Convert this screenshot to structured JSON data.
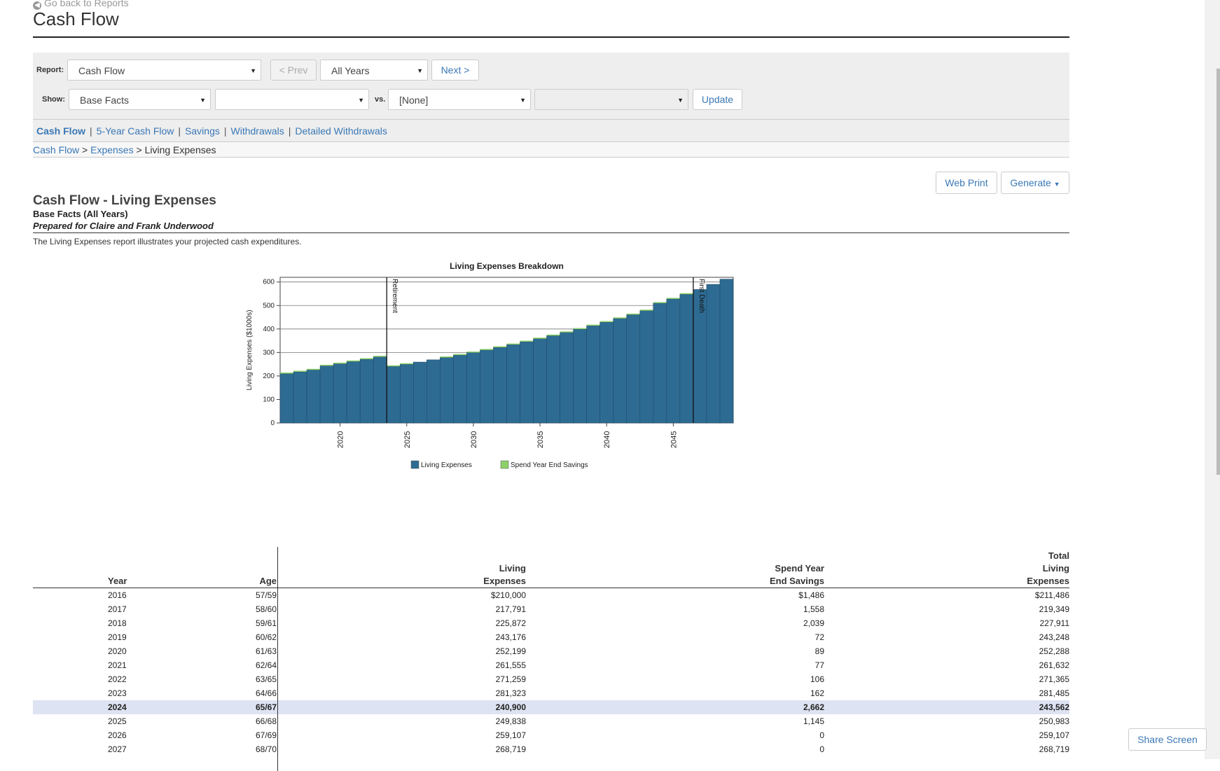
{
  "header": {
    "back_label": "Go back to Reports",
    "title": "Cash Flow"
  },
  "toolbar": {
    "report_label": "Report:",
    "report_value": "Cash Flow",
    "prev_label": "< Prev",
    "years_value": "All Years",
    "next_label": "Next >",
    "show_label": "Show:",
    "show_value": "Base Facts",
    "show_secondary_value": "",
    "vs_label": "vs.",
    "compare_value": "[None]",
    "compare_secondary_value": "",
    "update_label": "Update"
  },
  "subnav": {
    "items": [
      {
        "label": "Cash Flow"
      },
      {
        "label": "5-Year Cash Flow"
      },
      {
        "label": "Savings"
      },
      {
        "label": "Withdrawals"
      },
      {
        "label": "Detailed Withdrawals"
      }
    ]
  },
  "breadcrumb": {
    "items": [
      "Cash Flow",
      "Expenses",
      "Living Expenses"
    ],
    "separator": ">"
  },
  "actions": {
    "web_print_label": "Web Print",
    "generate_label": "Generate"
  },
  "report": {
    "title": "Cash Flow - Living Expenses",
    "subtitle": "Base Facts (All Years)",
    "prepared_for": "Prepared for Claire and Frank Underwood",
    "description": "The Living Expenses report illustrates your projected cash expenditures."
  },
  "chart_data": {
    "type": "bar",
    "stacked": true,
    "title": "Living Expenses Breakdown",
    "xlabel": "",
    "ylabel": "Living Expenses ($1000s)",
    "ylim": [
      0,
      620
    ],
    "yticks": [
      0,
      100,
      200,
      300,
      400,
      500,
      600
    ],
    "xticks": [
      2020,
      2025,
      2030,
      2035,
      2040,
      2045
    ],
    "categories": [
      2016,
      2017,
      2018,
      2019,
      2020,
      2021,
      2022,
      2023,
      2024,
      2025,
      2026,
      2027,
      2028,
      2029,
      2030,
      2031,
      2032,
      2033,
      2034,
      2035,
      2036,
      2037,
      2038,
      2039,
      2040,
      2041,
      2042,
      2043,
      2044,
      2045,
      2046,
      2047,
      2048,
      2049
    ],
    "series": [
      {
        "name": "Living Expenses",
        "color": "#2e6b93",
        "values": [
          210,
          217.8,
          225.9,
          243.2,
          252.2,
          261.6,
          271.3,
          281.3,
          240.9,
          249.8,
          259.1,
          268.7,
          278.6,
          288.9,
          299.5,
          310.5,
          321.9,
          333.7,
          345.9,
          358.6,
          371.7,
          385.3,
          399.4,
          414.0,
          429.1,
          444.8,
          461.0,
          477.8,
          510,
          528,
          548,
          568,
          590,
          612
        ]
      },
      {
        "name": "Spend Year End Savings",
        "color": "#8dd06a",
        "values": [
          1.5,
          1.6,
          2.0,
          0.1,
          0.1,
          0.1,
          0.1,
          0.2,
          2.7,
          1.1,
          0,
          0,
          1,
          1,
          1,
          1,
          1,
          1,
          1,
          1,
          1,
          1,
          1,
          1,
          1,
          1,
          1,
          1,
          1,
          1,
          1,
          0,
          0,
          0
        ]
      }
    ],
    "annotations": [
      {
        "label": "Retirement",
        "x": 2024
      },
      {
        "label": "First Death",
        "x": 2047
      }
    ],
    "legend_position": "bottom",
    "grid": true
  },
  "table": {
    "headers": {
      "year": "Year",
      "age": "Age",
      "living": [
        "Living",
        "Expenses"
      ],
      "spend": [
        "Spend Year",
        "End Savings"
      ],
      "total": [
        "Total",
        "Living",
        "Expenses"
      ]
    },
    "rows": [
      {
        "year": "2016",
        "age": "57/59",
        "living": "$210,000",
        "spend": "$1,486",
        "total": "$211,486",
        "highlight": false
      },
      {
        "year": "2017",
        "age": "58/60",
        "living": "217,791",
        "spend": "1,558",
        "total": "219,349",
        "highlight": false
      },
      {
        "year": "2018",
        "age": "59/61",
        "living": "225,872",
        "spend": "2,039",
        "total": "227,911",
        "highlight": false
      },
      {
        "year": "2019",
        "age": "60/62",
        "living": "243,176",
        "spend": "72",
        "total": "243,248",
        "highlight": false
      },
      {
        "year": "2020",
        "age": "61/63",
        "living": "252,199",
        "spend": "89",
        "total": "252,288",
        "highlight": false
      },
      {
        "year": "2021",
        "age": "62/64",
        "living": "261,555",
        "spend": "77",
        "total": "261,632",
        "highlight": false
      },
      {
        "year": "2022",
        "age": "63/65",
        "living": "271,259",
        "spend": "106",
        "total": "271,365",
        "highlight": false
      },
      {
        "year": "2023",
        "age": "64/66",
        "living": "281,323",
        "spend": "162",
        "total": "281,485",
        "highlight": false
      },
      {
        "year": "2024",
        "age": "65/67",
        "living": "240,900",
        "spend": "2,662",
        "total": "243,562",
        "highlight": true
      },
      {
        "year": "2025",
        "age": "66/68",
        "living": "249,838",
        "spend": "1,145",
        "total": "250,983",
        "highlight": false
      },
      {
        "year": "2026",
        "age": "67/69",
        "living": "259,107",
        "spend": "0",
        "total": "259,107",
        "highlight": false
      },
      {
        "year": "2027",
        "age": "68/70",
        "living": "268,719",
        "spend": "0",
        "total": "268,719",
        "highlight": false
      }
    ]
  },
  "share_label": "Share Screen"
}
